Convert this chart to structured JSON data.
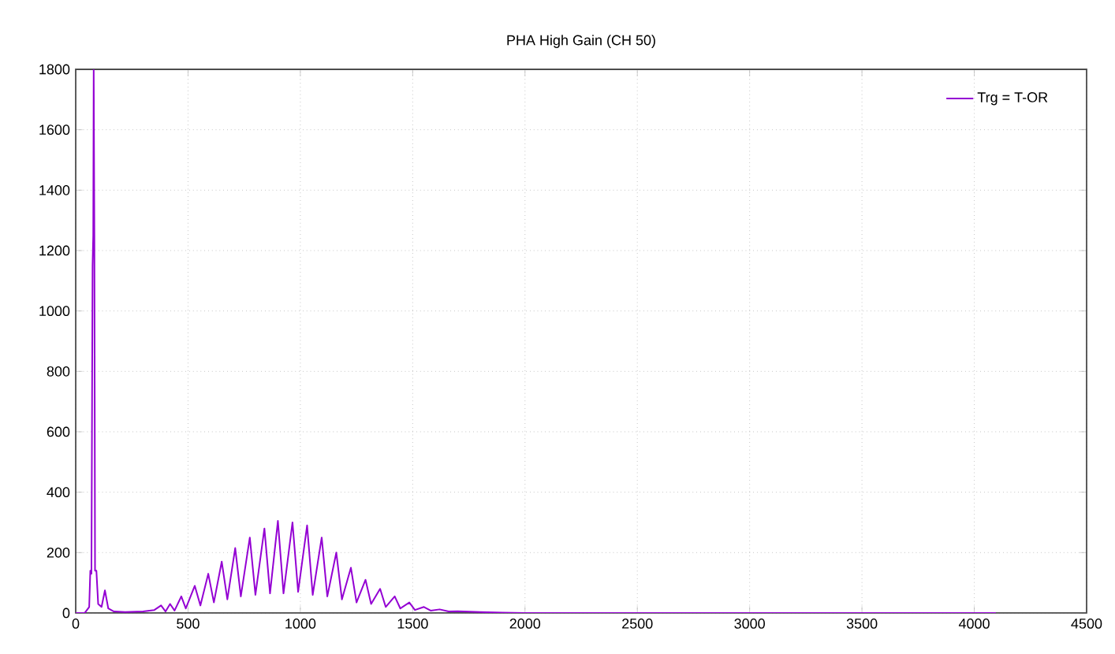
{
  "chart_data": {
    "type": "line",
    "title": "PHA High Gain (CH 50)",
    "series": [
      {
        "name": "Trg = T-OR",
        "color": "#9400d3",
        "x": [
          0,
          40,
          60,
          65,
          70,
          75,
          78,
          80,
          83,
          86,
          92,
          100,
          115,
          130,
          145,
          170,
          220,
          300,
          350,
          380,
          400,
          420,
          440,
          470,
          490,
          530,
          555,
          590,
          615,
          650,
          675,
          710,
          735,
          775,
          800,
          840,
          865,
          900,
          925,
          965,
          990,
          1030,
          1055,
          1095,
          1120,
          1160,
          1185,
          1225,
          1250,
          1290,
          1315,
          1355,
          1380,
          1420,
          1445,
          1485,
          1510,
          1550,
          1580,
          1620,
          1660,
          1700,
          1800,
          1900,
          2000,
          4096
        ],
        "values": [
          0,
          0,
          20,
          140,
          130,
          1150,
          1250,
          1800,
          1250,
          140,
          140,
          30,
          20,
          75,
          15,
          5,
          3,
          5,
          10,
          25,
          5,
          30,
          8,
          55,
          15,
          90,
          25,
          130,
          35,
          170,
          45,
          215,
          55,
          250,
          60,
          280,
          65,
          305,
          65,
          300,
          70,
          290,
          60,
          250,
          55,
          200,
          45,
          150,
          35,
          110,
          30,
          80,
          20,
          55,
          15,
          35,
          10,
          20,
          8,
          12,
          5,
          6,
          3,
          1,
          0,
          0
        ]
      }
    ],
    "xlim": [
      0,
      4500
    ],
    "ylim": [
      0,
      1800
    ],
    "xticks": [
      0,
      500,
      1000,
      1500,
      2000,
      2500,
      3000,
      3500,
      4000,
      4500
    ],
    "yticks": [
      0,
      200,
      400,
      600,
      800,
      1000,
      1200,
      1400,
      1600,
      1800
    ],
    "grid": true,
    "legend": "top right",
    "marker": "none",
    "line_style": "solid"
  }
}
